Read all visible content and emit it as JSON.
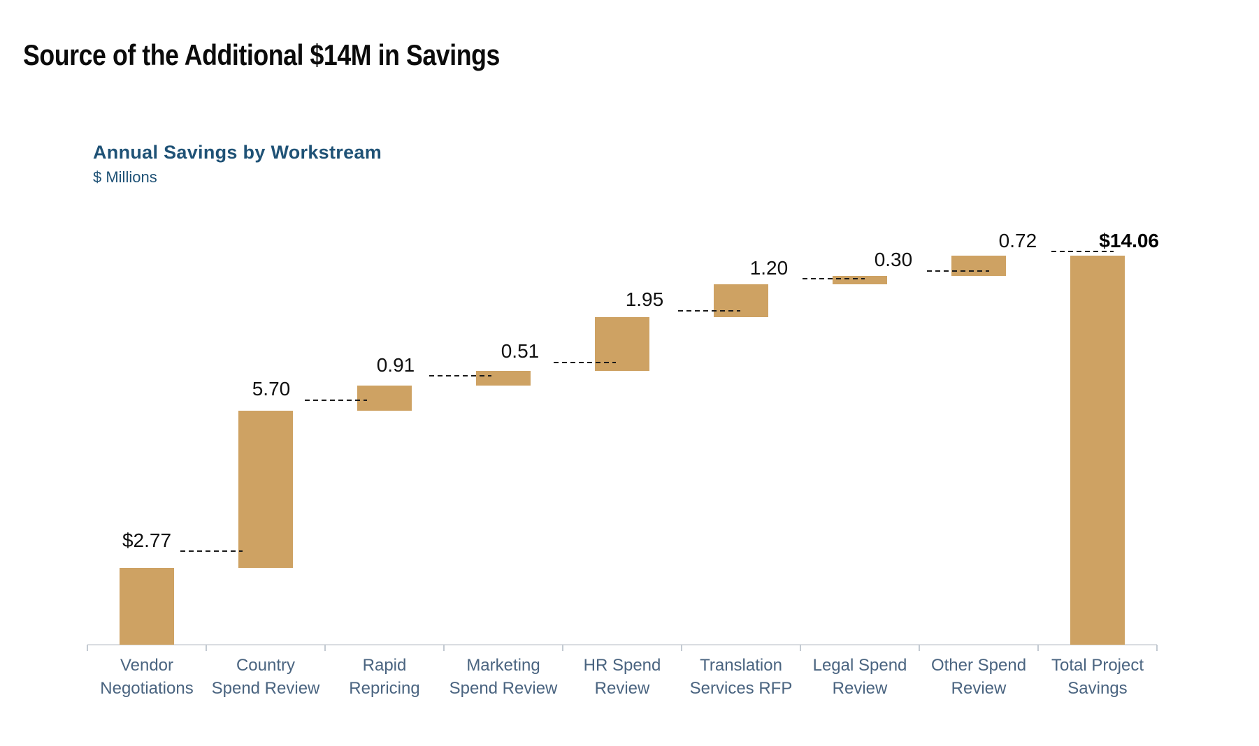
{
  "page": {
    "title": "Source of the Additional $14M in Savings"
  },
  "chart": {
    "subtitle": "Annual Savings by Workstream",
    "units_label": "$ Millions"
  },
  "chart_data": {
    "type": "waterfall",
    "title": "Annual Savings by Workstream",
    "subtitle_units": "$ Millions",
    "xlabel": "",
    "ylabel": "$ Millions",
    "ylim": [
      0,
      14.06
    ],
    "grid": false,
    "legend": false,
    "categories": [
      "Vendor\nNegotiations",
      "Country\nSpend Review",
      "Rapid\nRepricing",
      "Marketing\nSpend Review",
      "HR Spend\nReview",
      "Translation\nServices RFP",
      "Legal Spend\nReview",
      "Other Spend\nReview",
      "Total Project\nSavings"
    ],
    "values": [
      2.77,
      5.7,
      0.91,
      0.51,
      1.95,
      1.2,
      0.3,
      0.72,
      14.06
    ],
    "cumulative": [
      2.77,
      8.47,
      9.38,
      9.89,
      11.84,
      13.04,
      13.34,
      14.06
    ],
    "bar_labels": [
      "$2.77",
      "5.70",
      "0.91",
      "0.51",
      "1.95",
      "1.20",
      "0.30",
      "0.72",
      "$14.06"
    ],
    "is_total": [
      false,
      false,
      false,
      false,
      false,
      false,
      false,
      false,
      true
    ],
    "connector_style": "dashed",
    "colors": {
      "bar": "#cea263",
      "value_label": "#101010",
      "total_label": "#000000",
      "category_label": "#4a6480",
      "axis": "#dadde1",
      "tick": "#c3cad2",
      "connector": "#1a1a1a",
      "title": "#0b0b0b",
      "accent_blue": "#1f5276"
    }
  }
}
